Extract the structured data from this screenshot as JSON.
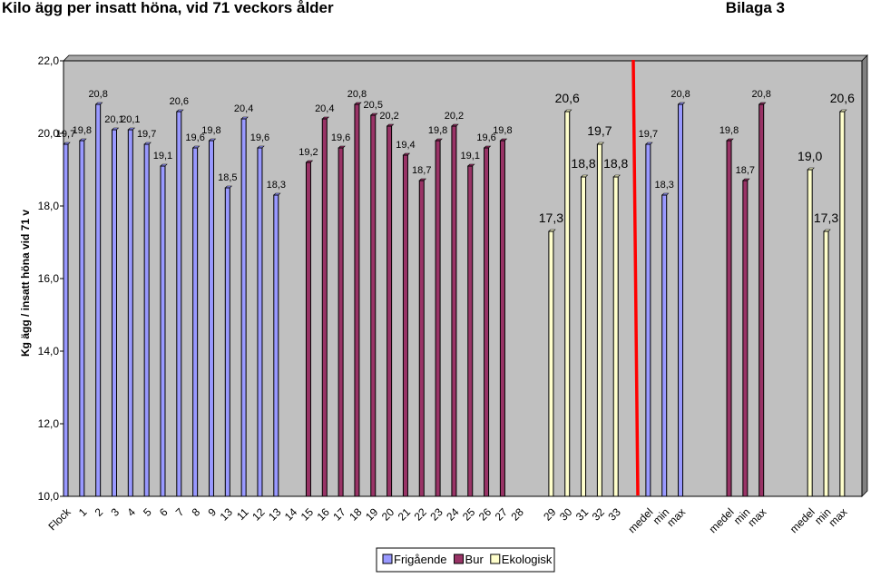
{
  "header": {
    "title": "Kilo ägg per insatt höna, vid 71 veckors ålder",
    "appendix": "Bilaga 3"
  },
  "colors": {
    "plot_bg": "#c0c0c0",
    "friga": "#9999ff",
    "bur": "#993366",
    "eko": "#ffffcc",
    "divider": "#ff0000"
  },
  "chart_data": {
    "type": "bar",
    "ylabel": "Kg ägg / insatt höna vid 71 v",
    "ylim": [
      10,
      22
    ],
    "yticks": [
      "10,0",
      "12,0",
      "14,0",
      "16,0",
      "18,0",
      "20,0",
      "22,0"
    ],
    "grid": false,
    "legend_position": "bottom",
    "categories": [
      "Flock",
      "1",
      "2",
      "3",
      "4",
      "5",
      "6",
      "7",
      "8",
      "9",
      "13",
      "11",
      "12",
      "13",
      "14",
      "15",
      "16",
      "17",
      "18",
      "19",
      "20",
      "21",
      "22",
      "23",
      "24",
      "25",
      "26",
      "27",
      "28",
      "",
      "29",
      "30",
      "31",
      "32",
      "33",
      "",
      "medel",
      "min",
      "max",
      "",
      "",
      "medel",
      "min",
      "max",
      "",
      "",
      "medel",
      "min",
      "max"
    ],
    "series": [
      {
        "name": "Frigående",
        "color": "#9999ff",
        "values": [
          19.7,
          19.8,
          20.8,
          20.1,
          20.1,
          19.7,
          19.1,
          20.6,
          19.6,
          19.8,
          18.5,
          20.4,
          19.6,
          18.3,
          null,
          null,
          null,
          null,
          null,
          null,
          null,
          null,
          null,
          null,
          null,
          null,
          null,
          null,
          null,
          null,
          null,
          null,
          null,
          null,
          null,
          null,
          19.7,
          18.3,
          20.8,
          null,
          null,
          null,
          null,
          null,
          null,
          null,
          null,
          null,
          null
        ],
        "labels": [
          "19,7",
          "19,8",
          "20,8",
          "20,1",
          "20,1",
          "19,7",
          "19,1",
          "20,6",
          "19,6",
          "19,8",
          "18,5",
          "20,4",
          "19,6",
          "18,3",
          "",
          "",
          "",
          "",
          "",
          "",
          "",
          "",
          "",
          "",
          "",
          "",
          "",
          "",
          "",
          "",
          "",
          "",
          "",
          "",
          "",
          "",
          "19,7",
          "18,3",
          "20,8",
          "",
          "",
          "",
          "",
          "",
          "",
          "",
          "",
          "",
          ""
        ]
      },
      {
        "name": "Bur",
        "color": "#993366",
        "values": [
          null,
          null,
          null,
          null,
          null,
          null,
          null,
          null,
          null,
          null,
          null,
          null,
          null,
          null,
          null,
          19.2,
          20.4,
          19.6,
          20.8,
          20.5,
          20.2,
          19.4,
          18.7,
          19.8,
          20.2,
          19.1,
          19.6,
          19.8,
          null,
          null,
          null,
          null,
          null,
          null,
          null,
          null,
          null,
          null,
          null,
          null,
          null,
          19.8,
          18.7,
          20.8,
          null,
          null,
          null,
          null,
          null
        ],
        "labels": [
          "",
          "",
          "",
          "",
          "",
          "",
          "",
          "",
          "",
          "",
          "",
          "",
          "",
          "",
          "",
          "19,2",
          "20,4",
          "19,6",
          "20,8",
          "20,5",
          "20,2",
          "19,4",
          "18,7",
          "19,8",
          "20,2",
          "19,1",
          "19,6",
          "19,8",
          "",
          "",
          "",
          "",
          "",
          "",
          "",
          "",
          "",
          "",
          "",
          "",
          "",
          "19,8",
          "18,7",
          "20,8",
          "",
          "",
          "",
          "",
          ""
        ]
      },
      {
        "name": "Ekologisk",
        "color": "#ffffcc",
        "values": [
          null,
          null,
          null,
          null,
          null,
          null,
          null,
          null,
          null,
          null,
          null,
          null,
          null,
          null,
          null,
          null,
          null,
          null,
          null,
          null,
          null,
          null,
          null,
          null,
          null,
          null,
          null,
          null,
          null,
          null,
          17.3,
          20.6,
          18.8,
          19.7,
          18.8,
          null,
          null,
          null,
          null,
          null,
          null,
          null,
          null,
          null,
          null,
          null,
          19.0,
          17.3,
          20.6
        ],
        "labels": [
          "",
          "",
          "",
          "",
          "",
          "",
          "",
          "",
          "",
          "",
          "",
          "",
          "",
          "",
          "",
          "",
          "",
          "",
          "",
          "",
          "",
          "",
          "",
          "",
          "",
          "",
          "",
          "",
          "",
          "",
          "17,3",
          "20,6",
          "18,8",
          "19,7",
          "18,8",
          "",
          "",
          "",
          "",
          "",
          "",
          "",
          "",
          "",
          "",
          "",
          "19,0",
          "17,3",
          "20,6"
        ]
      }
    ]
  }
}
